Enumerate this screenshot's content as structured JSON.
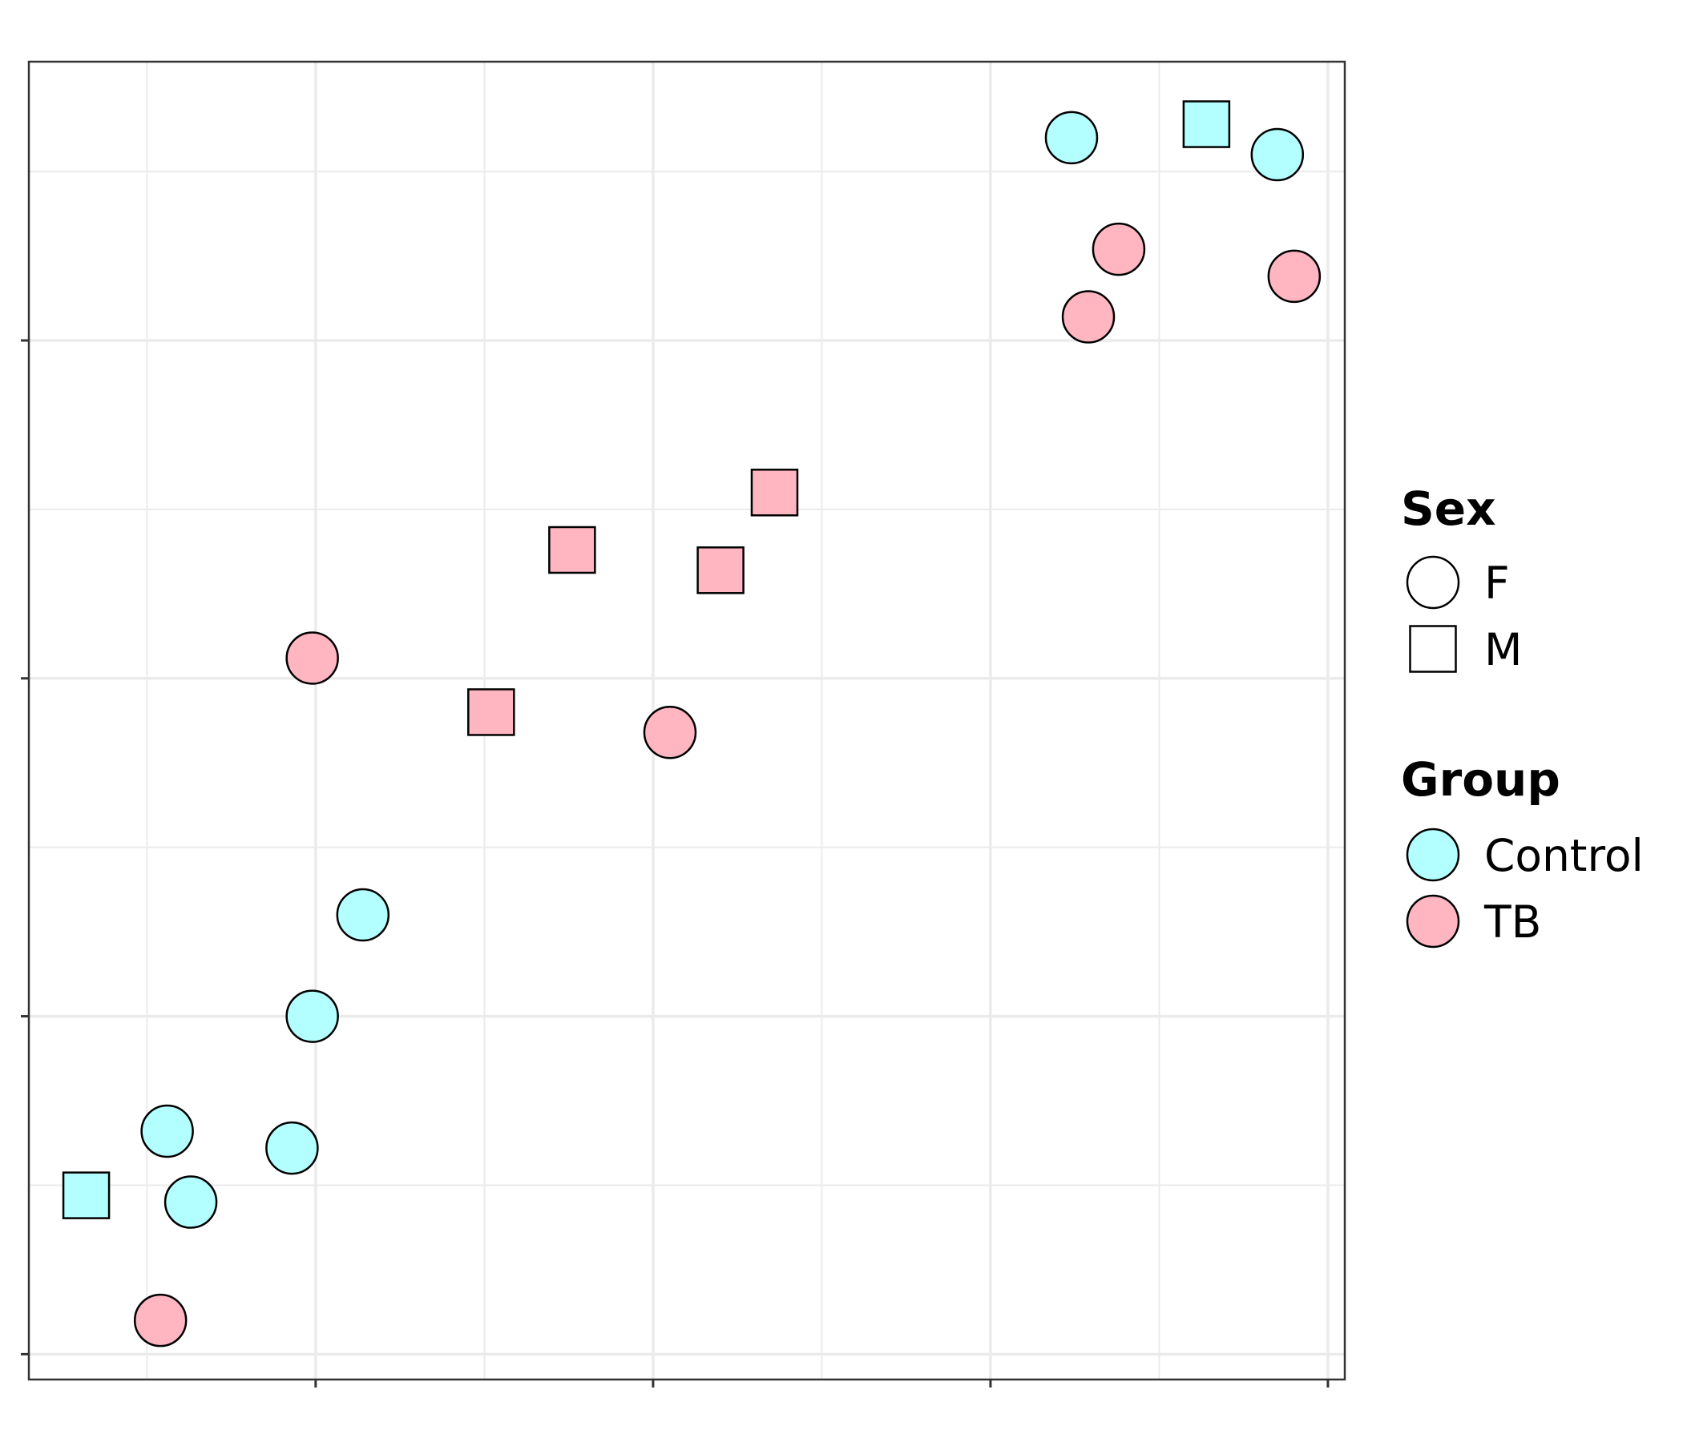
{
  "chart_data": {
    "type": "scatter",
    "title": "",
    "xlabel": "",
    "ylabel": "",
    "xlim": [
      -0.85,
      3.05
    ],
    "ylim": [
      -0.075,
      3.825
    ],
    "x_major_ticks": [
      0,
      1,
      2,
      3
    ],
    "y_major_ticks": [
      0,
      1,
      2,
      3
    ],
    "grid": true,
    "legend_position": "right",
    "colors": {
      "Control": "#b3ffff",
      "TB": "#ffb6c1"
    },
    "legends": [
      {
        "title": "Sex",
        "entries": [
          {
            "label": "F",
            "shape": "circle"
          },
          {
            "label": "M",
            "shape": "square"
          }
        ]
      },
      {
        "title": "Group",
        "entries": [
          {
            "label": "Control",
            "color": "#b3ffff"
          },
          {
            "label": "TB",
            "color": "#ffb6c1"
          }
        ]
      }
    ],
    "points": [
      {
        "x": 2.24,
        "y": 3.6,
        "group": "Control",
        "sex": "F"
      },
      {
        "x": 2.64,
        "y": 3.64,
        "group": "Control",
        "sex": "M"
      },
      {
        "x": 2.85,
        "y": 3.55,
        "group": "Control",
        "sex": "F"
      },
      {
        "x": 2.38,
        "y": 3.27,
        "group": "TB",
        "sex": "F"
      },
      {
        "x": 2.9,
        "y": 3.19,
        "group": "TB",
        "sex": "F"
      },
      {
        "x": 2.29,
        "y": 3.07,
        "group": "TB",
        "sex": "F"
      },
      {
        "x": 1.36,
        "y": 2.55,
        "group": "TB",
        "sex": "M"
      },
      {
        "x": 0.76,
        "y": 2.38,
        "group": "TB",
        "sex": "M"
      },
      {
        "x": 1.2,
        "y": 2.32,
        "group": "TB",
        "sex": "M"
      },
      {
        "x": -0.01,
        "y": 2.06,
        "group": "TB",
        "sex": "F"
      },
      {
        "x": 0.52,
        "y": 1.9,
        "group": "TB",
        "sex": "M"
      },
      {
        "x": 1.05,
        "y": 1.84,
        "group": "TB",
        "sex": "F"
      },
      {
        "x": 0.14,
        "y": 1.3,
        "group": "Control",
        "sex": "F"
      },
      {
        "x": -0.01,
        "y": 1.0,
        "group": "Control",
        "sex": "F"
      },
      {
        "x": -0.44,
        "y": 0.66,
        "group": "Control",
        "sex": "F"
      },
      {
        "x": -0.07,
        "y": 0.61,
        "group": "Control",
        "sex": "F"
      },
      {
        "x": -0.68,
        "y": 0.47,
        "group": "Control",
        "sex": "M"
      },
      {
        "x": -0.37,
        "y": 0.45,
        "group": "Control",
        "sex": "F"
      },
      {
        "x": -0.46,
        "y": 0.1,
        "group": "TB",
        "sex": "F"
      }
    ]
  }
}
